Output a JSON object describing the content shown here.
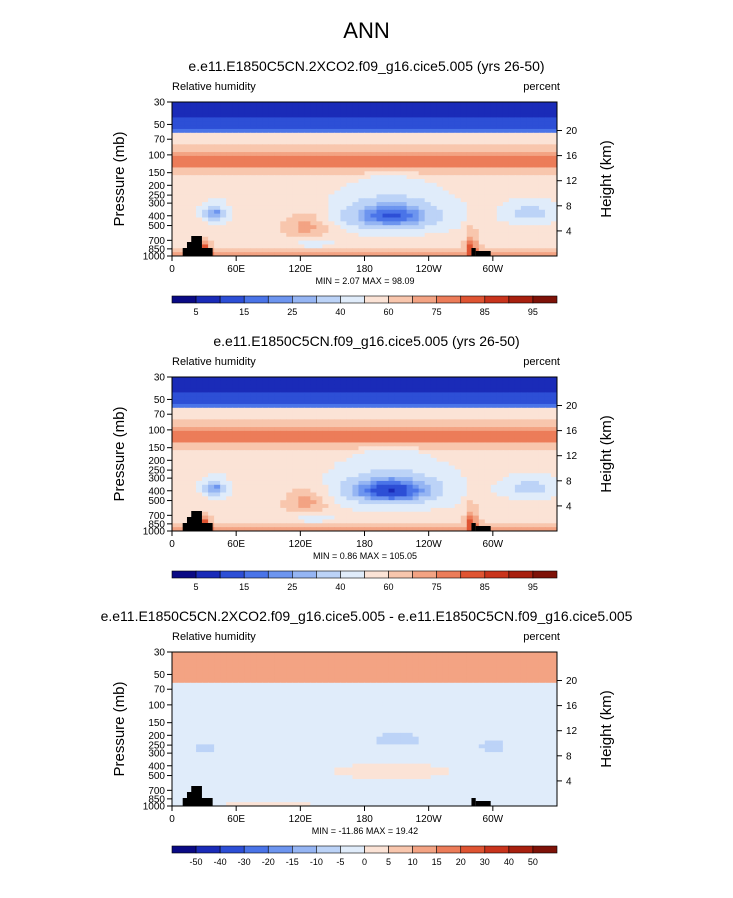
{
  "figure": {
    "title": "ANN"
  },
  "chart_data": [
    {
      "type": "heatmap",
      "title": "e.e11.E1850C5CN.2XCO2.f09_g16.cice5.005 (yrs 26-50)",
      "left_label": "Relative humidity",
      "right_label": "percent",
      "ylabel": "Pressure (mb)",
      "y2label": "Height (km)",
      "xticks": [
        "0",
        "60E",
        "120E",
        "180",
        "120W",
        "60W"
      ],
      "yticks": [
        "30",
        "50",
        "70",
        "100",
        "150",
        "200",
        "250",
        "300",
        "400",
        "500",
        "700",
        "850",
        "1000"
      ],
      "y2ticks": [
        "20",
        "16",
        "12",
        "8",
        "4"
      ],
      "stats": "MIN =   2.07  MAX =  98.09",
      "colorbar": {
        "labels": [
          "5",
          "15",
          "25",
          "40",
          "60",
          "75",
          "85",
          "95"
        ]
      },
      "kind": "rh"
    },
    {
      "type": "heatmap",
      "title": "e.e11.E1850C5CN.f09_g16.cice5.005 (yrs 26-50)",
      "left_label": "Relative humidity",
      "right_label": "percent",
      "ylabel": "Pressure (mb)",
      "y2label": "Height (km)",
      "xticks": [
        "0",
        "60E",
        "120E",
        "180",
        "120W",
        "60W"
      ],
      "yticks": [
        "30",
        "50",
        "70",
        "100",
        "150",
        "200",
        "250",
        "300",
        "400",
        "500",
        "700",
        "850",
        "1000"
      ],
      "y2ticks": [
        "20",
        "16",
        "12",
        "8",
        "4"
      ],
      "stats": "MIN =   0.86  MAX = 105.05",
      "colorbar": {
        "labels": [
          "5",
          "15",
          "25",
          "40",
          "60",
          "75",
          "85",
          "95"
        ]
      },
      "kind": "rh"
    },
    {
      "type": "heatmap",
      "title": "e.e11.E1850C5CN.2XCO2.f09_g16.cice5.005 - e.e11.E1850C5CN.f09_g16.cice5.005",
      "left_label": "Relative humidity",
      "right_label": "percent",
      "ylabel": "Pressure (mb)",
      "y2label": "Height (km)",
      "xticks": [
        "0",
        "60E",
        "120E",
        "180",
        "120W",
        "60W"
      ],
      "yticks": [
        "30",
        "50",
        "70",
        "100",
        "150",
        "200",
        "250",
        "300",
        "400",
        "500",
        "700",
        "850",
        "1000"
      ],
      "y2ticks": [
        "20",
        "16",
        "12",
        "8",
        "4"
      ],
      "stats": "MIN = -11.86  MAX =  19.42",
      "colorbar": {
        "labels": [
          "-50",
          "-40",
          "-30",
          "-20",
          "-15",
          "-10",
          "-5",
          "0",
          "5",
          "10",
          "15",
          "20",
          "30",
          "40",
          "50"
        ]
      },
      "kind": "diff"
    }
  ],
  "colors": {
    "rh_scale": [
      "#0a0a84",
      "#1a2bb8",
      "#2d4fd6",
      "#4a74e8",
      "#6d95ef",
      "#95b5f3",
      "#bcd3f7",
      "#e0ecfa",
      "#fbe3d6",
      "#f8c6ad",
      "#f3a383",
      "#ec7c59",
      "#df5432",
      "#c9341c",
      "#a8200f",
      "#7e1208"
    ],
    "diff_scale": [
      "#0a0a84",
      "#1a2bb8",
      "#2d4fd6",
      "#4a74e8",
      "#6d95ef",
      "#95b5f3",
      "#bcd3f7",
      "#e0ecfa",
      "#fbe3d6",
      "#f8c6ad",
      "#f3a383",
      "#ec7c59",
      "#df5432",
      "#c9341c",
      "#a8200f",
      "#7e1208"
    ]
  }
}
